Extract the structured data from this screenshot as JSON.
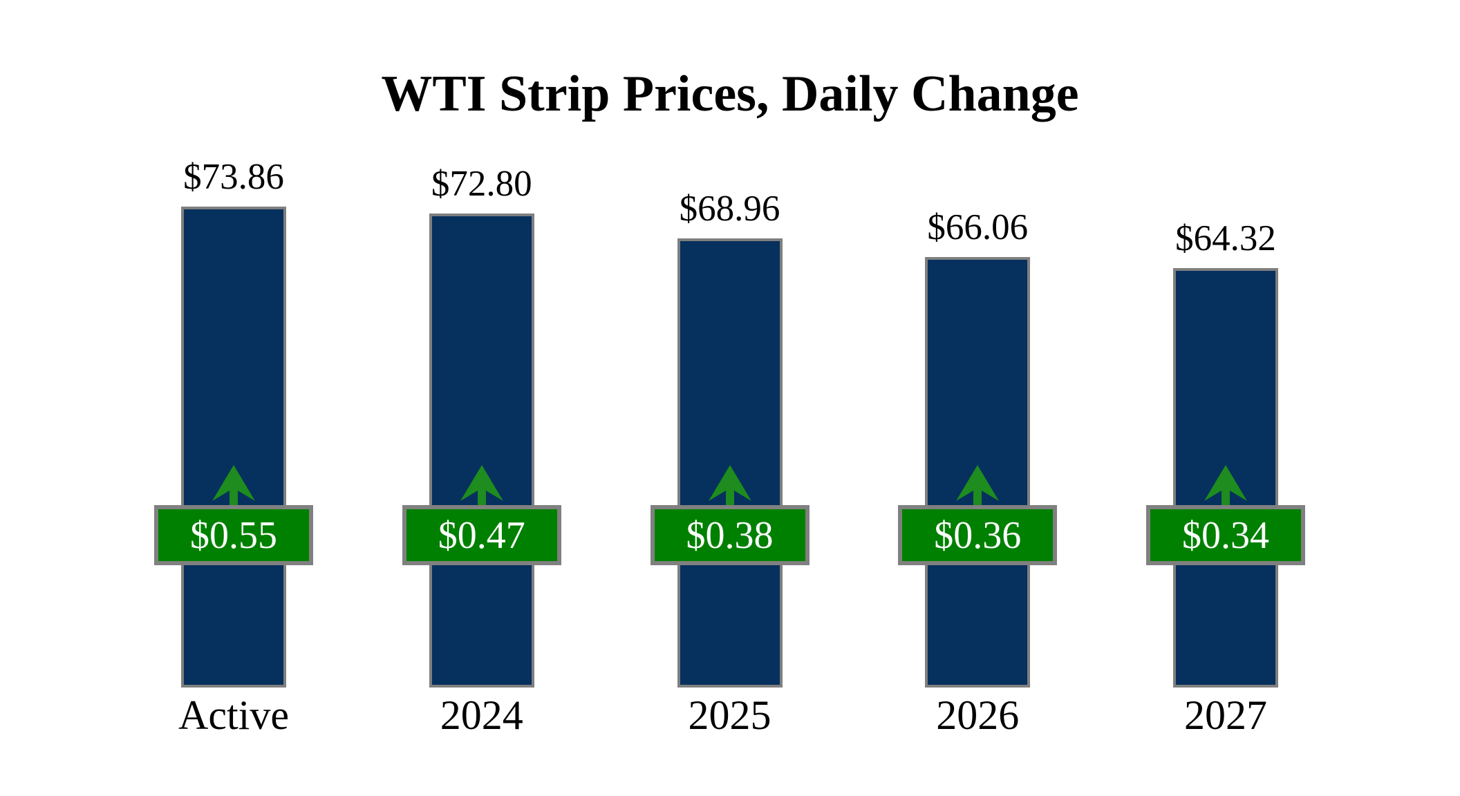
{
  "chart_data": {
    "type": "bar",
    "title": "WTI Strip Prices, Daily Change",
    "categories": [
      "Active",
      "2024",
      "2025",
      "2026",
      "2027"
    ],
    "series": [
      {
        "name": "strip_price",
        "values": [
          73.86,
          72.8,
          68.96,
          66.06,
          64.32
        ],
        "labels": [
          "$73.86",
          "$72.80",
          "$68.96",
          "$66.06",
          "$64.32"
        ]
      },
      {
        "name": "daily_change",
        "values": [
          0.55,
          0.47,
          0.38,
          0.36,
          0.34
        ],
        "labels": [
          "$0.55",
          "$0.47",
          "$0.38",
          "$0.36",
          "$0.34"
        ],
        "direction": "up"
      }
    ],
    "xlabel": "",
    "ylabel": "",
    "ylim": [
      0,
      73.86
    ],
    "grid": false,
    "legend": "none",
    "axes_visible": false
  },
  "colors": {
    "background": "#ffffff",
    "bar_fill": "#06305d",
    "bar_border": "#7f7f7f",
    "badge_fill": "#008000",
    "badge_border": "#808080",
    "badge_text": "#ffffff",
    "arrow": "#1e8c1e",
    "label_text": "#000000"
  }
}
